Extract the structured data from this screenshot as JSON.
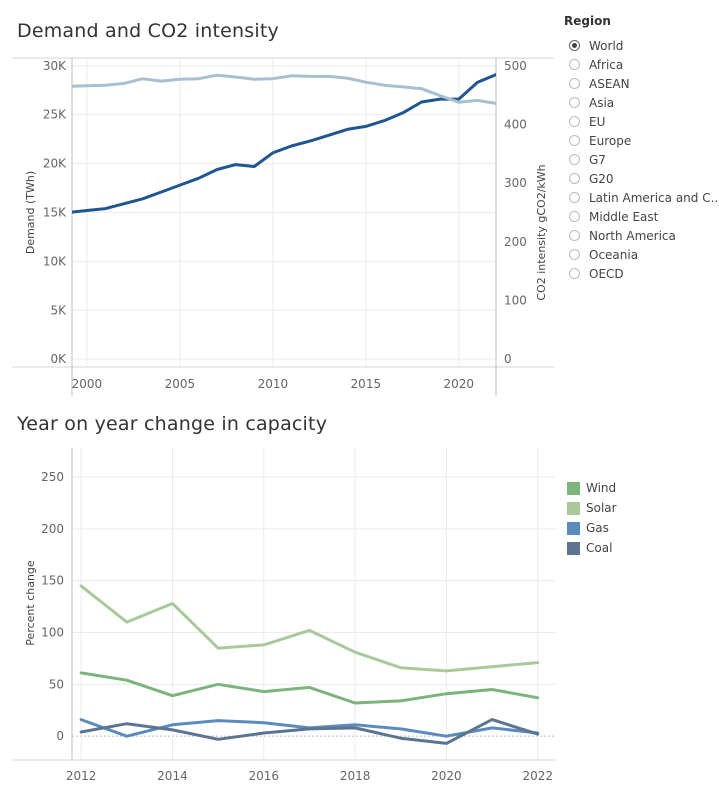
{
  "region_filter": {
    "title": "Region",
    "selected": "World",
    "options": [
      "World",
      "Africa",
      "ASEAN",
      "Asia",
      "EU",
      "Europe",
      "G7",
      "G20",
      "Latin America and C...",
      "Middle East",
      "North America",
      "Oceania",
      "OECD"
    ]
  },
  "chart_data": [
    {
      "type": "line",
      "title": "Demand and CO2 intensity",
      "xlabel": "",
      "ylabel": "Demand (TWh)",
      "y2label": "CO2 intensity gCO2/kWh",
      "xlim": [
        1999.2,
        2022
      ],
      "ylim": [
        -800,
        30800
      ],
      "y2lim": [
        -13.3,
        513.3
      ],
      "x_ticks": [
        2000,
        2005,
        2010,
        2015,
        2020
      ],
      "y_ticks": [
        0,
        5000,
        10000,
        15000,
        20000,
        25000,
        30000
      ],
      "y_tick_labels": [
        "0K",
        "5K",
        "10K",
        "15K",
        "20K",
        "25K",
        "30K"
      ],
      "y2_ticks": [
        0,
        100,
        200,
        300,
        400,
        500
      ],
      "grid": true,
      "x": [
        1999,
        2000,
        2001,
        2002,
        2003,
        2004,
        2005,
        2006,
        2007,
        2008,
        2009,
        2010,
        2011,
        2012,
        2013,
        2014,
        2015,
        2016,
        2017,
        2018,
        2019,
        2020,
        2021,
        2022
      ],
      "series": [
        {
          "values": [
            15000,
            15200,
            15400,
            15900,
            16400,
            17100,
            17800,
            18500,
            19400,
            19900,
            19700,
            21100,
            21800,
            22300,
            22900,
            23500,
            23800,
            24400,
            25200,
            26300,
            26600,
            26600,
            28300,
            29100
          ],
          "axis": "left",
          "color": "#1f5591"
        },
        {
          "values": [
            465,
            466,
            467,
            470,
            478,
            474,
            477,
            478,
            484,
            481,
            477,
            478,
            483,
            482,
            482,
            479,
            472,
            467,
            464,
            461,
            449,
            438,
            441,
            436
          ],
          "axis": "right",
          "color": "#a8bfcf"
        }
      ]
    },
    {
      "type": "line",
      "title": "Year on year change in capacity",
      "xlabel": "",
      "ylabel": "Percent change",
      "xlim": [
        2011.8,
        2022.4
      ],
      "ylim": [
        -23,
        278
      ],
      "x_ticks": [
        2012,
        2014,
        2016,
        2018,
        2020,
        2022
      ],
      "y_ticks": [
        0,
        50,
        100,
        150,
        200,
        250
      ],
      "grid": true,
      "legend": "right",
      "x": [
        2012,
        2013,
        2014,
        2015,
        2016,
        2017,
        2018,
        2019,
        2020,
        2021,
        2022
      ],
      "series": [
        {
          "name": "Wind",
          "color": "#7db37d",
          "values": [
            61,
            54,
            39,
            50,
            43,
            47,
            32,
            34,
            41,
            45,
            37
          ]
        },
        {
          "name": "Solar",
          "color": "#a9c99b",
          "values": [
            145,
            110,
            128,
            85,
            88,
            102,
            81,
            66,
            63,
            67,
            71
          ]
        },
        {
          "name": "Gas",
          "color": "#5b8bbd",
          "values": [
            16,
            0,
            11,
            15,
            13,
            8,
            11,
            7,
            0,
            8,
            3
          ]
        },
        {
          "name": "Coal",
          "color": "#5d7490",
          "values": [
            4,
            12,
            6,
            -3,
            3,
            7,
            8,
            -2,
            -7,
            16,
            2
          ]
        }
      ]
    }
  ]
}
